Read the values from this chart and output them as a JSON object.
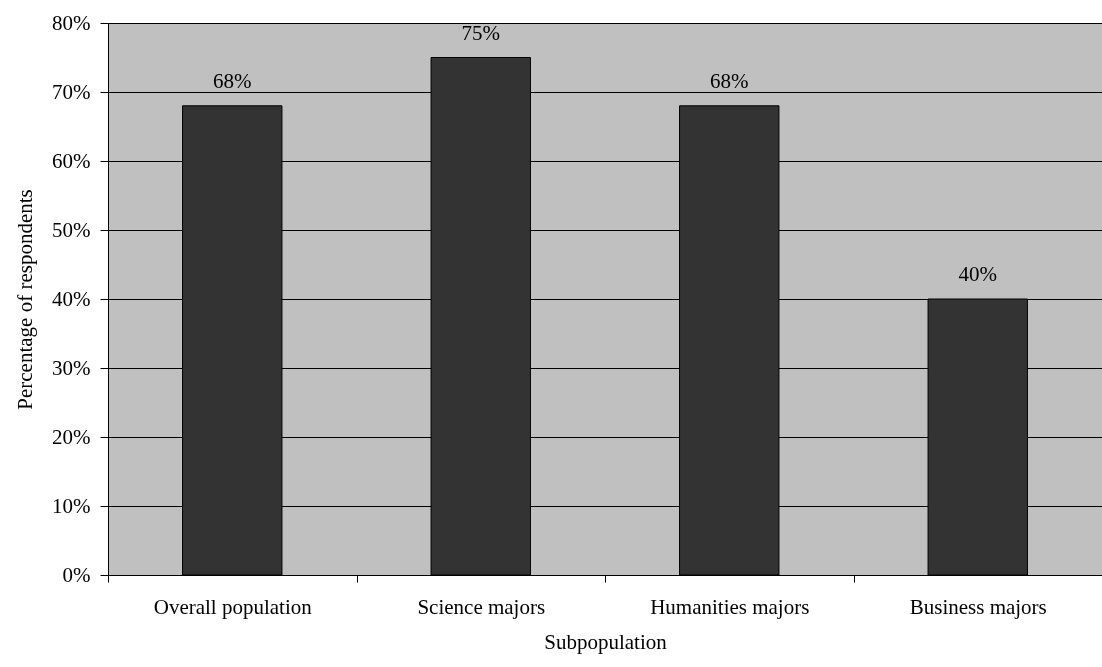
{
  "chart_data": {
    "type": "bar",
    "xlabel": "Subpopulation",
    "ylabel": "Percentage of respondents",
    "categories": [
      "Overall population",
      "Science majors",
      "Humanities majors",
      "Business majors"
    ],
    "values": [
      68,
      75,
      68,
      40
    ],
    "value_labels": [
      "68%",
      "75%",
      "68%",
      "40%"
    ],
    "color": "#333333",
    "ylim": [
      0,
      80
    ],
    "yticks": [
      {
        "value": 0,
        "label": "0%"
      },
      {
        "value": 10,
        "label": "10%"
      },
      {
        "value": 20,
        "label": "20%"
      },
      {
        "value": 30,
        "label": "30%"
      },
      {
        "value": 40,
        "label": "40%"
      },
      {
        "value": 50,
        "label": "50%"
      },
      {
        "value": 60,
        "label": "60%"
      },
      {
        "value": 70,
        "label": "70%"
      },
      {
        "value": 80,
        "label": "80%"
      }
    ],
    "grid": "y"
  }
}
